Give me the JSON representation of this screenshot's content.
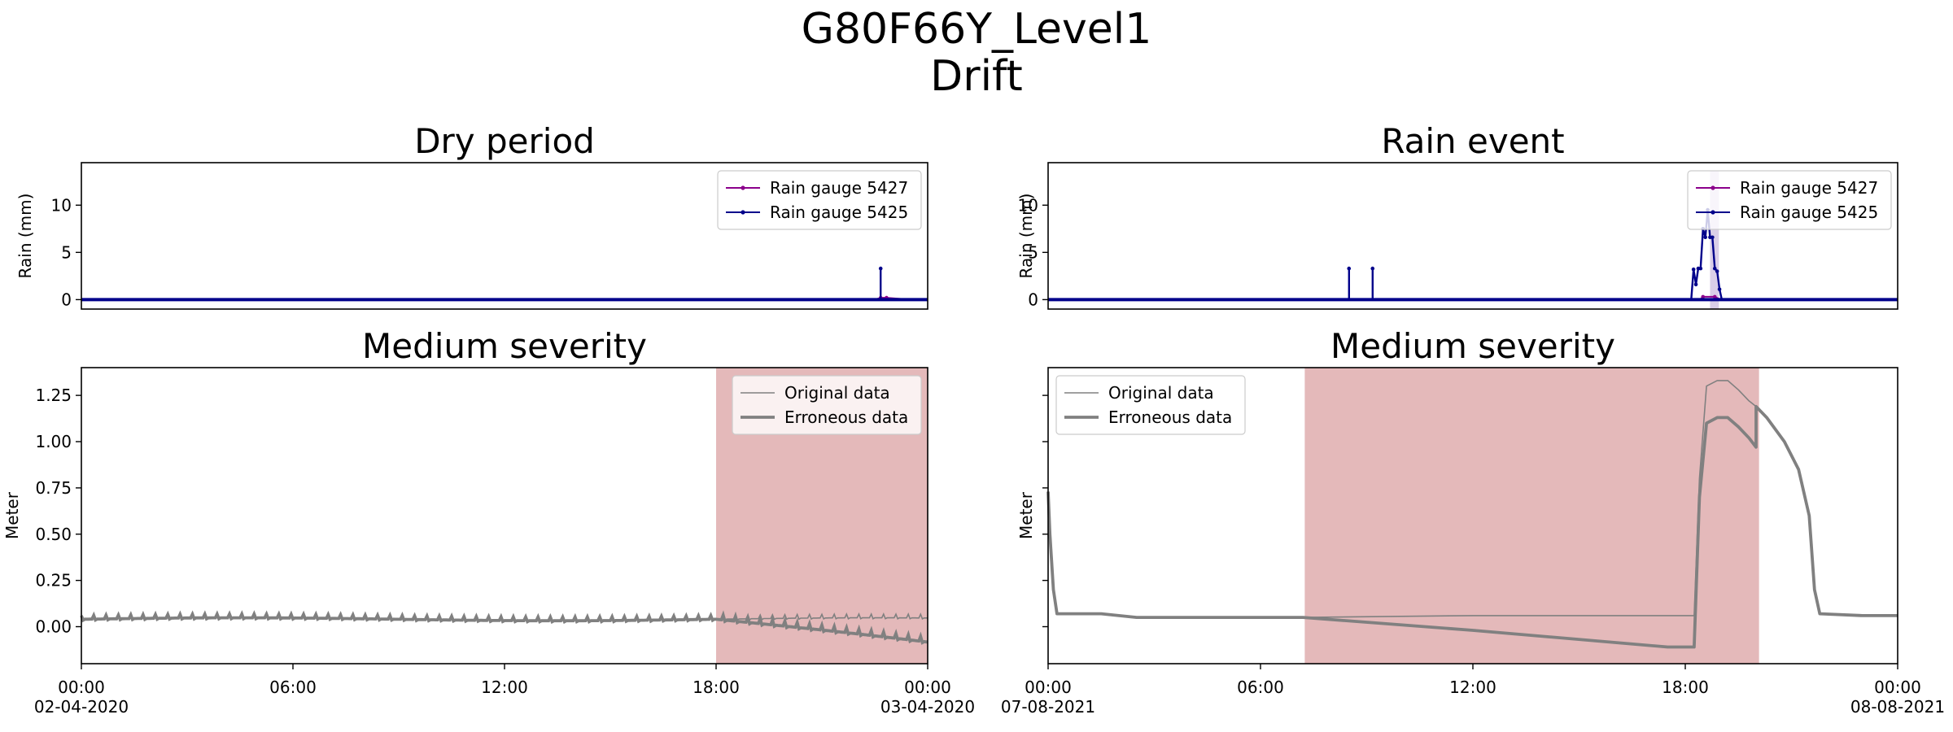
{
  "figure": {
    "title_line1": "G80F66Y_Level1",
    "title_line2": "Drift"
  },
  "colors": {
    "gauge_5427": "#8b008b",
    "gauge_5425": "#00008b",
    "series_grey": "#808080",
    "highlight": "#e4b9ba",
    "rain_peak_shade": "#d6c9e6",
    "rain_base_red": "#d43a3a"
  },
  "chart_data": [
    {
      "id": "dry-rain",
      "type": "line",
      "title": "Dry period",
      "ylabel": "Rain (mm)",
      "xlabel": "",
      "xlim": [
        "2020-04-02 00:00",
        "2020-04-03 00:00"
      ],
      "ylim": [
        -1,
        14.5
      ],
      "yticks": [
        0,
        5,
        10
      ],
      "ytick_labels": [
        "0",
        "5",
        "10"
      ],
      "legend_position": "upper right",
      "series": [
        {
          "name": "Rain gauge 5427",
          "color": "#8b008b",
          "x": [
            "2020-04-02 00:00",
            "2020-04-02 22:30",
            "2020-04-02 22:40",
            "2020-04-02 22:50",
            "2020-04-02 23:30",
            "2020-04-03 00:00"
          ],
          "y": [
            0,
            0,
            0.2,
            0.2,
            0,
            0
          ]
        },
        {
          "name": "Rain gauge 5425",
          "color": "#00008b",
          "x": [
            "2020-04-02 00:00",
            "2020-04-02 22:40",
            "2020-04-02 22:40",
            "2020-04-02 22:40",
            "2020-04-03 00:00"
          ],
          "y": [
            0,
            0,
            3.3,
            0,
            0
          ]
        }
      ]
    },
    {
      "id": "rain-rain",
      "type": "line",
      "title": "Rain event",
      "ylabel": "Rain (mm)",
      "xlabel": "",
      "xlim": [
        "2021-08-07 00:00",
        "2021-08-08 00:00"
      ],
      "ylim": [
        -1,
        14.5
      ],
      "yticks": [
        0,
        5,
        10
      ],
      "ytick_labels": [
        "0",
        "5",
        "10"
      ],
      "legend_position": "upper right",
      "series": [
        {
          "name": "Rain gauge 5427",
          "color": "#8b008b",
          "x": [
            "2021-08-07 00:00",
            "2021-08-07 18:25",
            "2021-08-07 18:30",
            "2021-08-07 18:50",
            "2021-08-07 19:00",
            "2021-08-08 00:00"
          ],
          "y": [
            0,
            0,
            0.3,
            0.3,
            0,
            0
          ]
        },
        {
          "name": "Rain gauge 5425",
          "color": "#00008b",
          "x": [
            "2021-08-07 00:00",
            "2021-08-07 08:30",
            "2021-08-07 08:30",
            "2021-08-07 08:30",
            "2021-08-07 09:10",
            "2021-08-07 09:10",
            "2021-08-07 09:10",
            "2021-08-07 18:10",
            "2021-08-07 18:14",
            "2021-08-07 18:18",
            "2021-08-07 18:22",
            "2021-08-07 18:26",
            "2021-08-07 18:30",
            "2021-08-07 18:34",
            "2021-08-07 18:38",
            "2021-08-07 18:42",
            "2021-08-07 18:46",
            "2021-08-07 18:50",
            "2021-08-07 18:54",
            "2021-08-07 18:58",
            "2021-08-07 19:02",
            "2021-08-08 00:00"
          ],
          "y": [
            0,
            0,
            3.3,
            0,
            0,
            3.3,
            0,
            0,
            3.2,
            1.6,
            3.3,
            3.3,
            7.5,
            6.6,
            9.5,
            6.6,
            6.6,
            3.3,
            3.0,
            1.1,
            0,
            0
          ]
        }
      ]
    },
    {
      "id": "dry-level",
      "type": "line",
      "title": "Medium severity",
      "ylabel": "Meter",
      "xlabel": "",
      "xlim": [
        "2020-04-02 00:00",
        "2020-04-03 00:00"
      ],
      "ylim": [
        -0.2,
        1.4
      ],
      "yticks": [
        0,
        0.25,
        0.5,
        0.75,
        1.0,
        1.25
      ],
      "ytick_labels": [
        "0.00",
        "0.25",
        "0.50",
        "0.75",
        "1.00",
        "1.25"
      ],
      "xticks": [
        "00:00",
        "06:00",
        "12:00",
        "18:00",
        "00:00"
      ],
      "x_start_date": "02-04-2020",
      "x_end_date": "03-04-2020",
      "legend_position": "upper right",
      "highlight_span": [
        "2020-04-02 18:00",
        "2020-04-03 00:00"
      ],
      "series": [
        {
          "name": "Original data",
          "color": "#808080",
          "linewidth": "thin",
          "x_hours": [
            0,
            18,
            24
          ],
          "y": [
            0.04,
            0.045,
            0.04
          ]
        },
        {
          "name": "Erroneous data",
          "color": "#808080",
          "linewidth": "thick",
          "x_hours": [
            0,
            18,
            24
          ],
          "y": [
            0.04,
            0.045,
            -0.09
          ]
        }
      ]
    },
    {
      "id": "rain-level",
      "type": "line",
      "title": "Medium severity",
      "ylabel": "Meter",
      "xlabel": "",
      "xlim": [
        "2021-08-07 00:00",
        "2021-08-08 00:00"
      ],
      "ylim": [
        -0.2,
        1.4
      ],
      "xticks": [
        "00:00",
        "06:00",
        "12:00",
        "18:00",
        "00:00"
      ],
      "x_start_date": "07-08-2021",
      "x_end_date": "08-08-2021",
      "legend_position": "upper left",
      "highlight_span": [
        "2021-08-07 07:15",
        "2021-08-07 20:05"
      ],
      "series": [
        {
          "name": "Original data",
          "color": "#808080",
          "linewidth": "thin",
          "x_hours": [
            0,
            0.05,
            0.15,
            0.25,
            1.5,
            2.5,
            7.2,
            12,
            17.5,
            18.25,
            18.4,
            18.6,
            18.9,
            19.2,
            19.5,
            19.8,
            20.0,
            20.3,
            20.8,
            21.2,
            21.5,
            21.65,
            21.8,
            23,
            24
          ],
          "y": [
            0.73,
            0.5,
            0.2,
            0.07,
            0.07,
            0.05,
            0.05,
            0.06,
            0.06,
            0.06,
            0.8,
            1.3,
            1.33,
            1.33,
            1.28,
            1.22,
            1.19,
            1.13,
            1.0,
            0.85,
            0.6,
            0.2,
            0.07,
            0.06,
            0.06
          ]
        },
        {
          "name": "Erroneous data",
          "color": "#808080",
          "linewidth": "thick",
          "x_hours": [
            0,
            0.05,
            0.15,
            0.25,
            1.5,
            2.5,
            7.2,
            12,
            17.5,
            18.25,
            18.4,
            18.6,
            18.9,
            19.2,
            19.5,
            19.8,
            20.0,
            20.0,
            20.3,
            20.8,
            21.2,
            21.5,
            21.65,
            21.8,
            23,
            24
          ],
          "y": [
            0.73,
            0.5,
            0.2,
            0.07,
            0.07,
            0.05,
            0.05,
            -0.02,
            -0.11,
            -0.11,
            0.7,
            1.1,
            1.13,
            1.13,
            1.08,
            1.02,
            0.97,
            1.19,
            1.13,
            1.0,
            0.85,
            0.6,
            0.2,
            0.07,
            0.06,
            0.06
          ]
        }
      ]
    }
  ]
}
